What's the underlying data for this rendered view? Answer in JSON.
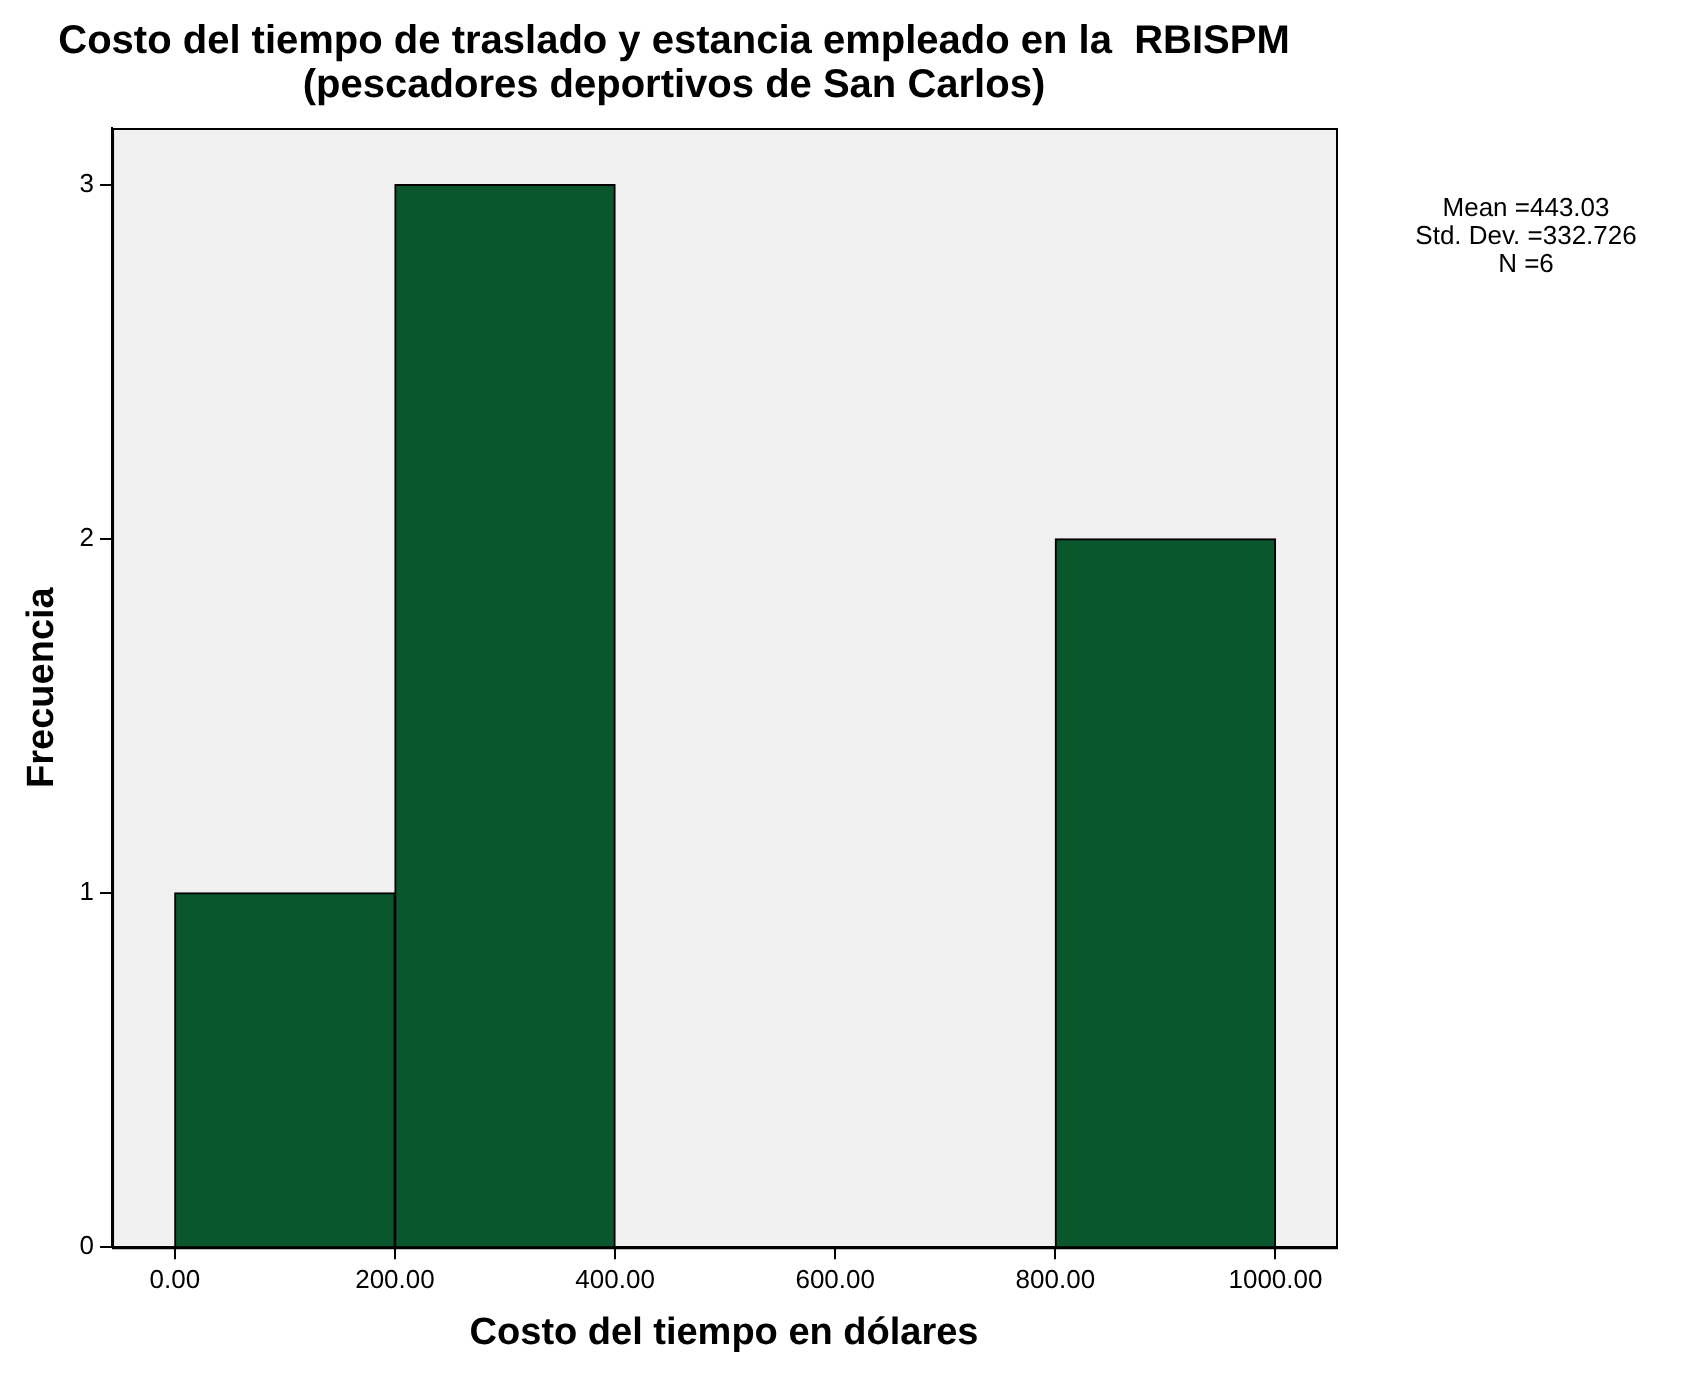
{
  "chart_data": {
    "type": "histogram",
    "title": "Costo del tiempo de traslado y estancia empleado en la  RBISPM\n(pescadores deportivos de San Carlos)",
    "xlabel": "Costo del tiempo en dólares",
    "ylabel": "Frecuencia",
    "bins": [
      0,
      200,
      400,
      600,
      800,
      1000
    ],
    "values": [
      1,
      3,
      0,
      0,
      2
    ],
    "color": "#0b572d",
    "xlim": [
      -57,
      1055
    ],
    "xticks": [
      {
        "value": 0,
        "label": "0.00"
      },
      {
        "value": 200,
        "label": "200.00"
      },
      {
        "value": 400,
        "label": "400.00"
      },
      {
        "value": 600,
        "label": "600.00"
      },
      {
        "value": 800,
        "label": "800.00"
      },
      {
        "value": 1000,
        "label": "1000.00"
      }
    ],
    "ylim": [
      0,
      3.16
    ],
    "yticks": [
      0,
      1,
      2,
      3
    ],
    "grid": false,
    "legend": false,
    "annotations": [
      "Mean =443.03\nStd. Dev. =332.726\nN =6"
    ]
  }
}
